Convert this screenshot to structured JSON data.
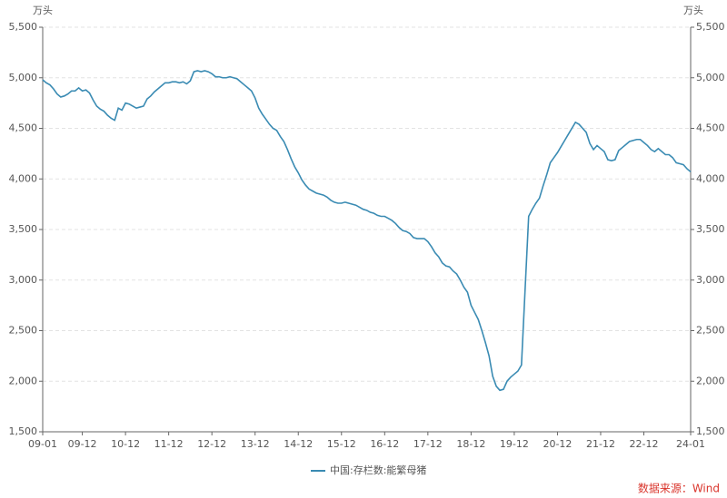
{
  "chart_data": {
    "type": "line",
    "y_unit": "万头",
    "y2_unit": "万头",
    "x": [
      "09-01",
      "09-02",
      "09-03",
      "09-04",
      "09-05",
      "09-06",
      "09-07",
      "09-08",
      "09-09",
      "09-10",
      "09-11",
      "09-12",
      "10-01",
      "10-02",
      "10-03",
      "10-04",
      "10-05",
      "10-06",
      "10-07",
      "10-08",
      "10-09",
      "10-10",
      "10-11",
      "10-12",
      "11-01",
      "11-02",
      "11-03",
      "11-04",
      "11-05",
      "11-06",
      "11-07",
      "11-08",
      "11-09",
      "11-10",
      "11-11",
      "11-12",
      "12-01",
      "12-02",
      "12-03",
      "12-04",
      "12-05",
      "12-06",
      "12-07",
      "12-08",
      "12-09",
      "12-10",
      "12-11",
      "12-12",
      "13-01",
      "13-02",
      "13-03",
      "13-04",
      "13-05",
      "13-06",
      "13-07",
      "13-08",
      "13-09",
      "13-10",
      "13-11",
      "13-12",
      "14-01",
      "14-02",
      "14-03",
      "14-04",
      "14-05",
      "14-06",
      "14-07",
      "14-08",
      "14-09",
      "14-10",
      "14-11",
      "14-12",
      "15-01",
      "15-02",
      "15-03",
      "15-04",
      "15-05",
      "15-06",
      "15-07",
      "15-08",
      "15-09",
      "15-10",
      "15-11",
      "15-12",
      "16-01",
      "16-02",
      "16-03",
      "16-04",
      "16-05",
      "16-06",
      "16-07",
      "16-08",
      "16-09",
      "16-10",
      "16-11",
      "16-12",
      "17-01",
      "17-02",
      "17-03",
      "17-04",
      "17-05",
      "17-06",
      "17-07",
      "17-08",
      "17-09",
      "17-10",
      "17-11",
      "17-12",
      "18-01",
      "18-02",
      "18-03",
      "18-04",
      "18-05",
      "18-06",
      "18-07",
      "18-08",
      "18-09",
      "18-10",
      "18-11",
      "18-12",
      "19-01",
      "19-02",
      "19-03",
      "19-04",
      "19-05",
      "19-06",
      "19-07",
      "19-08",
      "19-09",
      "19-10",
      "19-11",
      "19-12",
      "20-01",
      "20-02",
      "20-03",
      "20-04",
      "20-05",
      "20-06",
      "20-07",
      "20-08",
      "20-09",
      "20-10",
      "20-11",
      "20-12",
      "21-01",
      "21-02",
      "21-03",
      "21-04",
      "21-05",
      "21-06",
      "21-07",
      "21-08",
      "21-09",
      "21-10",
      "21-11",
      "21-12",
      "22-01",
      "22-02",
      "22-03",
      "22-04",
      "22-05",
      "22-06",
      "22-07",
      "22-08",
      "22-09",
      "22-10",
      "22-11",
      "22-12",
      "23-01",
      "23-02",
      "23-03",
      "23-04",
      "23-05",
      "23-06",
      "23-07",
      "23-08",
      "23-09",
      "23-10",
      "23-11",
      "23-12",
      "24-01"
    ],
    "xticks": [
      "09-01",
      "09-12",
      "10-12",
      "11-12",
      "12-12",
      "13-12",
      "14-12",
      "15-12",
      "16-12",
      "17-12",
      "18-12",
      "19-12",
      "20-12",
      "21-12",
      "22-12",
      "24-01"
    ],
    "series": [
      {
        "name": "中国:存栏数:能繁母猪",
        "color": "#3a8bb3",
        "values": [
          4980,
          4950,
          4930,
          4890,
          4840,
          4810,
          4820,
          4840,
          4870,
          4870,
          4900,
          4870,
          4880,
          4850,
          4780,
          4720,
          4690,
          4670,
          4630,
          4600,
          4580,
          4700,
          4680,
          4750,
          4740,
          4720,
          4700,
          4710,
          4720,
          4790,
          4820,
          4860,
          4890,
          4920,
          4950,
          4950,
          4960,
          4960,
          4950,
          4960,
          4940,
          4970,
          5060,
          5070,
          5060,
          5070,
          5060,
          5040,
          5010,
          5010,
          5000,
          5000,
          5010,
          5000,
          4990,
          4960,
          4930,
          4900,
          4870,
          4800,
          4700,
          4640,
          4590,
          4540,
          4500,
          4480,
          4420,
          4370,
          4290,
          4200,
          4120,
          4060,
          3990,
          3940,
          3900,
          3880,
          3860,
          3850,
          3840,
          3820,
          3790,
          3770,
          3760,
          3760,
          3770,
          3760,
          3750,
          3740,
          3720,
          3700,
          3690,
          3670,
          3660,
          3640,
          3630,
          3630,
          3610,
          3590,
          3560,
          3520,
          3490,
          3480,
          3460,
          3420,
          3410,
          3410,
          3410,
          3380,
          3330,
          3270,
          3230,
          3170,
          3140,
          3130,
          3090,
          3060,
          3000,
          2930,
          2880,
          2750,
          2680,
          2610,
          2500,
          2380,
          2250,
          2050,
          1950,
          1910,
          1920,
          2000,
          2040,
          2070,
          2100,
          2160,
          2900,
          3630,
          3700,
          3760,
          3810,
          3930,
          4040,
          4160,
          4210,
          4260,
          4320,
          4380,
          4440,
          4500,
          4560,
          4540,
          4500,
          4460,
          4350,
          4290,
          4330,
          4300,
          4270,
          4190,
          4180,
          4190,
          4280,
          4310,
          4340,
          4370,
          4380,
          4390,
          4390,
          4360,
          4330,
          4290,
          4270,
          4300,
          4270,
          4240,
          4240,
          4210,
          4160,
          4150,
          4140,
          4100,
          4070
        ]
      }
    ],
    "ylim": [
      1500,
      5500
    ],
    "yticks": [
      {
        "value": 1500,
        "label": "1,500"
      },
      {
        "value": 2000,
        "label": "2,000"
      },
      {
        "value": 2500,
        "label": "2,500"
      },
      {
        "value": 3000,
        "label": "3,000"
      },
      {
        "value": 3500,
        "label": "3,500"
      },
      {
        "value": 4000,
        "label": "4,000"
      },
      {
        "value": 4500,
        "label": "4,500"
      },
      {
        "value": 5000,
        "label": "5,000"
      },
      {
        "value": 5500,
        "label": "5,500"
      }
    ],
    "y2lim": [
      1500,
      5500
    ],
    "y2ticks": [
      {
        "value": 1500,
        "label": "1,500"
      },
      {
        "value": 2000,
        "label": "2,000"
      },
      {
        "value": 2500,
        "label": "2,500"
      },
      {
        "value": 3000,
        "label": "3,000"
      },
      {
        "value": 3500,
        "label": "3,500"
      },
      {
        "value": 4000,
        "label": "4,000"
      },
      {
        "value": 4500,
        "label": "4,500"
      },
      {
        "value": 5000,
        "label": "5,000"
      },
      {
        "value": 5500,
        "label": "5,500"
      }
    ],
    "grid": true,
    "source": "数据来源：Wind"
  }
}
